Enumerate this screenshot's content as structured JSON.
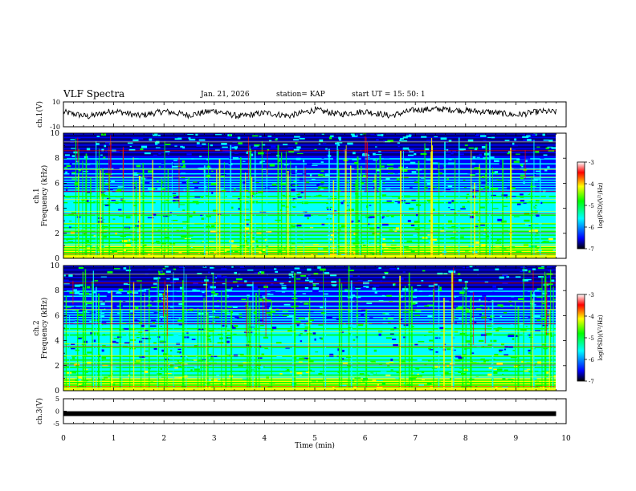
{
  "header": {
    "title": "VLF Spectra",
    "date": "Jan. 21, 2026",
    "station": "station= KAP",
    "start_ut": "start  UT =   15: 50: 1"
  },
  "colors": {
    "c1": "#00007a",
    "c2": "#0000ff",
    "c3": "#00ffff",
    "c4": "#00ff00",
    "c5": "#ffff00",
    "c6": "#ff0000",
    "c7": "#ffffff"
  },
  "chart_data": [
    {
      "type": "line",
      "id": "ch1",
      "ylabel": "ch.1(V)",
      "ylim": [
        -10,
        10
      ],
      "yticks": [
        "10",
        "-10"
      ],
      "xlim": [
        0,
        10
      ],
      "description_points": [
        0,
        0.5,
        1.0,
        1.5,
        2.0,
        2.5,
        3.0,
        3.5,
        4.0,
        4.5,
        5.0,
        5.5,
        6.0,
        6.5,
        7.0,
        7.5,
        8.0,
        8.5,
        9.0,
        9.5,
        9.8
      ],
      "values": [
        3,
        -3,
        5,
        -2,
        4,
        -1,
        5,
        -3,
        2,
        -2,
        6,
        0,
        4,
        -2,
        6,
        7,
        5,
        3,
        -1,
        4,
        3
      ]
    },
    {
      "type": "heatmap",
      "id": "ch1-spec",
      "ylabel_top": "ch.1",
      "ylabel": "Frequency (kHz)",
      "ylim": [
        0,
        10
      ],
      "yticks": [
        "0",
        "2",
        "4",
        "6",
        "8",
        "10"
      ],
      "xlim": [
        0,
        10
      ],
      "colorbar": {
        "label": "log(PSD)(V²/Hz)",
        "range": [
          -7,
          -3
        ],
        "ticks": [
          "-3",
          "-4",
          "-5",
          "-6",
          "-7"
        ]
      }
    },
    {
      "type": "heatmap",
      "id": "ch2-spec",
      "ylabel_top": "ch.2",
      "ylabel": "Frequency (kHz)",
      "ylim": [
        0,
        10
      ],
      "yticks": [
        "0",
        "2",
        "4",
        "6",
        "8",
        "10"
      ],
      "xlim": [
        0,
        10
      ],
      "colorbar": {
        "label": "log(PSD)(V²/Hz)",
        "range": [
          -7,
          -3
        ],
        "ticks": [
          "-3",
          "-4",
          "-5",
          "-6",
          "-7"
        ]
      }
    },
    {
      "type": "line",
      "id": "ch3",
      "ylabel": "ch.3(V)",
      "ylim": [
        -5,
        5
      ],
      "yticks": [
        "5",
        "0",
        "-5"
      ],
      "xlim": [
        0,
        10
      ],
      "x": [
        0,
        9.8
      ],
      "values": [
        -1,
        -1
      ]
    }
  ],
  "xaxis": {
    "label": "Time  (min)",
    "ticks": [
      "0",
      "1",
      "2",
      "3",
      "4",
      "5",
      "6",
      "7",
      "8",
      "9",
      "10"
    ]
  }
}
